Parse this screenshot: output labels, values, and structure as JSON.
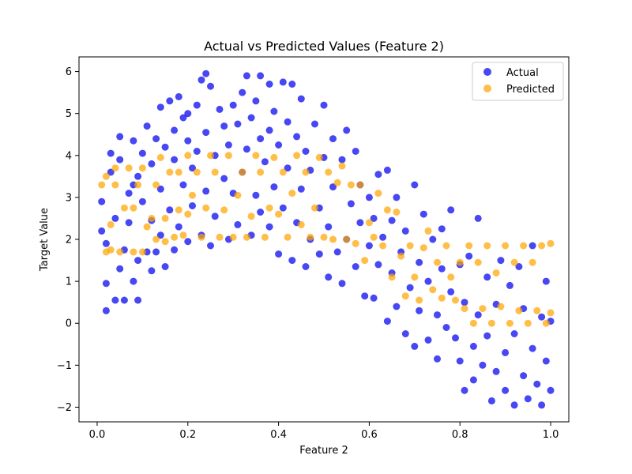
{
  "chart_data": {
    "type": "scatter",
    "title": "Actual vs Predicted Values (Feature 2)",
    "xlabel": "Feature 2",
    "ylabel": "Target Value",
    "xlim": [
      -0.04,
      1.04
    ],
    "ylim": [
      -2.35,
      6.35
    ],
    "x_ticks": [
      0.0,
      0.2,
      0.4,
      0.6,
      0.8,
      1.0
    ],
    "x_tick_labels": [
      "0.0",
      "0.2",
      "0.4",
      "0.6",
      "0.8",
      "1.0"
    ],
    "y_ticks": [
      -2,
      -1,
      0,
      1,
      2,
      3,
      4,
      5,
      6
    ],
    "y_tick_labels": [
      "−2",
      "−1",
      "0",
      "1",
      "2",
      "3",
      "4",
      "5",
      "6"
    ],
    "grid": false,
    "legend_position": "top-right",
    "series": [
      {
        "name": "Actual",
        "color": "#0000ee",
        "points": [
          [
            0.01,
            2.2
          ],
          [
            0.01,
            2.9
          ],
          [
            0.02,
            0.3
          ],
          [
            0.02,
            0.95
          ],
          [
            0.02,
            1.9
          ],
          [
            0.03,
            3.6
          ],
          [
            0.03,
            4.05
          ],
          [
            0.04,
            0.55
          ],
          [
            0.04,
            2.5
          ],
          [
            0.05,
            1.3
          ],
          [
            0.05,
            3.9
          ],
          [
            0.05,
            4.45
          ],
          [
            0.06,
            0.55
          ],
          [
            0.06,
            1.75
          ],
          [
            0.07,
            2.4
          ],
          [
            0.07,
            3.1
          ],
          [
            0.08,
            1.0
          ],
          [
            0.08,
            4.35
          ],
          [
            0.08,
            3.3
          ],
          [
            0.09,
            0.55
          ],
          [
            0.09,
            1.5
          ],
          [
            0.09,
            3.5
          ],
          [
            0.1,
            2.9
          ],
          [
            0.1,
            4.05
          ],
          [
            0.11,
            1.7
          ],
          [
            0.11,
            4.7
          ],
          [
            0.12,
            1.25
          ],
          [
            0.12,
            2.45
          ],
          [
            0.12,
            3.8
          ],
          [
            0.13,
            4.4
          ],
          [
            0.13,
            1.7
          ],
          [
            0.14,
            3.2
          ],
          [
            0.14,
            5.15
          ],
          [
            0.14,
            2.1
          ],
          [
            0.15,
            1.35
          ],
          [
            0.15,
            4.2
          ],
          [
            0.16,
            5.3
          ],
          [
            0.16,
            2.7
          ],
          [
            0.17,
            1.75
          ],
          [
            0.17,
            3.9
          ],
          [
            0.17,
            4.6
          ],
          [
            0.18,
            5.4
          ],
          [
            0.18,
            2.3
          ],
          [
            0.19,
            3.3
          ],
          [
            0.19,
            4.9
          ],
          [
            0.2,
            1.95
          ],
          [
            0.2,
            4.35
          ],
          [
            0.2,
            5.0
          ],
          [
            0.21,
            2.8
          ],
          [
            0.21,
            3.7
          ],
          [
            0.22,
            5.2
          ],
          [
            0.22,
            4.1
          ],
          [
            0.23,
            5.8
          ],
          [
            0.23,
            2.1
          ],
          [
            0.24,
            4.55
          ],
          [
            0.24,
            3.15
          ],
          [
            0.24,
            5.95
          ],
          [
            0.25,
            5.65
          ],
          [
            0.25,
            1.85
          ],
          [
            0.26,
            4.0
          ],
          [
            0.26,
            2.55
          ],
          [
            0.27,
            5.1
          ],
          [
            0.28,
            3.45
          ],
          [
            0.28,
            4.7
          ],
          [
            0.29,
            4.25
          ],
          [
            0.29,
            2.0
          ],
          [
            0.3,
            5.2
          ],
          [
            0.3,
            3.1
          ],
          [
            0.31,
            4.75
          ],
          [
            0.31,
            2.35
          ],
          [
            0.32,
            5.5
          ],
          [
            0.32,
            3.6
          ],
          [
            0.33,
            5.9
          ],
          [
            0.33,
            4.15
          ],
          [
            0.34,
            2.1
          ],
          [
            0.34,
            4.9
          ],
          [
            0.35,
            5.3
          ],
          [
            0.35,
            3.05
          ],
          [
            0.36,
            5.9
          ],
          [
            0.36,
            4.4
          ],
          [
            0.36,
            2.65
          ],
          [
            0.37,
            3.85
          ],
          [
            0.38,
            5.7
          ],
          [
            0.38,
            2.3
          ],
          [
            0.38,
            4.6
          ],
          [
            0.39,
            3.25
          ],
          [
            0.39,
            5.05
          ],
          [
            0.4,
            1.65
          ],
          [
            0.4,
            4.25
          ],
          [
            0.41,
            5.75
          ],
          [
            0.41,
            2.75
          ],
          [
            0.42,
            3.7
          ],
          [
            0.42,
            4.8
          ],
          [
            0.43,
            1.5
          ],
          [
            0.43,
            5.7
          ],
          [
            0.44,
            2.4
          ],
          [
            0.44,
            4.45
          ],
          [
            0.45,
            3.2
          ],
          [
            0.45,
            5.35
          ],
          [
            0.46,
            1.35
          ],
          [
            0.46,
            4.1
          ],
          [
            0.47,
            2.0
          ],
          [
            0.47,
            3.65
          ],
          [
            0.48,
            4.75
          ],
          [
            0.49,
            1.65
          ],
          [
            0.49,
            2.75
          ],
          [
            0.5,
            3.95
          ],
          [
            0.5,
            5.2
          ],
          [
            0.51,
            1.1
          ],
          [
            0.51,
            2.3
          ],
          [
            0.52,
            4.4
          ],
          [
            0.52,
            3.25
          ],
          [
            0.53,
            1.7
          ],
          [
            0.54,
            0.95
          ],
          [
            0.54,
            3.9
          ],
          [
            0.55,
            2.0
          ],
          [
            0.55,
            4.6
          ],
          [
            0.56,
            2.85
          ],
          [
            0.57,
            1.35
          ],
          [
            0.57,
            4.1
          ],
          [
            0.58,
            2.4
          ],
          [
            0.58,
            3.3
          ],
          [
            0.59,
            0.65
          ],
          [
            0.6,
            1.85
          ],
          [
            0.6,
            3.0
          ],
          [
            0.61,
            2.5
          ],
          [
            0.61,
            0.6
          ],
          [
            0.62,
            3.55
          ],
          [
            0.62,
            1.4
          ],
          [
            0.63,
            2.05
          ],
          [
            0.64,
            0.05
          ],
          [
            0.64,
            3.65
          ],
          [
            0.65,
            1.2
          ],
          [
            0.65,
            2.45
          ],
          [
            0.66,
            0.4
          ],
          [
            0.66,
            3.0
          ],
          [
            0.67,
            1.7
          ],
          [
            0.68,
            -0.25
          ],
          [
            0.68,
            2.2
          ],
          [
            0.69,
            0.85
          ],
          [
            0.7,
            3.3
          ],
          [
            0.7,
            -0.55
          ],
          [
            0.71,
            1.45
          ],
          [
            0.71,
            0.3
          ],
          [
            0.72,
            2.6
          ],
          [
            0.73,
            -0.4
          ],
          [
            0.73,
            1.0
          ],
          [
            0.74,
            2.0
          ],
          [
            0.75,
            -0.85
          ],
          [
            0.75,
            0.2
          ],
          [
            0.76,
            2.25
          ],
          [
            0.76,
            1.3
          ],
          [
            0.77,
            -0.1
          ],
          [
            0.78,
            0.75
          ],
          [
            0.78,
            2.7
          ],
          [
            0.79,
            -0.35
          ],
          [
            0.8,
            1.4
          ],
          [
            0.8,
            -0.9
          ],
          [
            0.81,
            0.5
          ],
          [
            0.81,
            -1.6
          ],
          [
            0.82,
            1.6
          ],
          [
            0.83,
            -0.55
          ],
          [
            0.83,
            -1.35
          ],
          [
            0.84,
            0.2
          ],
          [
            0.84,
            2.5
          ],
          [
            0.85,
            -1.0
          ],
          [
            0.86,
            1.1
          ],
          [
            0.86,
            -0.3
          ],
          [
            0.87,
            -1.85
          ],
          [
            0.88,
            0.45
          ],
          [
            0.88,
            -1.15
          ],
          [
            0.89,
            1.5
          ],
          [
            0.9,
            -0.7
          ],
          [
            0.9,
            -1.6
          ],
          [
            0.91,
            0.9
          ],
          [
            0.92,
            -1.95
          ],
          [
            0.92,
            -0.25
          ],
          [
            0.93,
            1.35
          ],
          [
            0.94,
            -1.25
          ],
          [
            0.94,
            0.35
          ],
          [
            0.95,
            -1.8
          ],
          [
            0.96,
            -0.6
          ],
          [
            0.96,
            1.85
          ],
          [
            0.97,
            -1.45
          ],
          [
            0.98,
            0.15
          ],
          [
            0.98,
            -1.95
          ],
          [
            0.99,
            -0.9
          ],
          [
            0.99,
            1.0
          ],
          [
            1.0,
            -1.6
          ],
          [
            1.0,
            0.05
          ]
        ]
      },
      {
        "name": "Predicted",
        "color": "#ffa500",
        "points": [
          [
            0.01,
            3.3
          ],
          [
            0.02,
            3.5
          ],
          [
            0.02,
            1.7
          ],
          [
            0.03,
            2.35
          ],
          [
            0.03,
            1.75
          ],
          [
            0.04,
            3.3
          ],
          [
            0.04,
            3.7
          ],
          [
            0.05,
            1.7
          ],
          [
            0.06,
            2.75
          ],
          [
            0.07,
            3.7
          ],
          [
            0.08,
            2.75
          ],
          [
            0.08,
            1.7
          ],
          [
            0.09,
            3.3
          ],
          [
            0.1,
            3.7
          ],
          [
            0.1,
            1.7
          ],
          [
            0.11,
            2.3
          ],
          [
            0.12,
            2.5
          ],
          [
            0.13,
            2.0
          ],
          [
            0.13,
            3.3
          ],
          [
            0.14,
            3.95
          ],
          [
            0.15,
            1.95
          ],
          [
            0.15,
            2.5
          ],
          [
            0.16,
            3.6
          ],
          [
            0.17,
            2.05
          ],
          [
            0.18,
            2.7
          ],
          [
            0.18,
            3.6
          ],
          [
            0.19,
            2.1
          ],
          [
            0.2,
            4.0
          ],
          [
            0.2,
            2.6
          ],
          [
            0.21,
            3.05
          ],
          [
            0.22,
            3.6
          ],
          [
            0.23,
            2.05
          ],
          [
            0.24,
            2.75
          ],
          [
            0.25,
            4.0
          ],
          [
            0.26,
            3.6
          ],
          [
            0.27,
            2.05
          ],
          [
            0.28,
            2.7
          ],
          [
            0.29,
            4.0
          ],
          [
            0.3,
            2.05
          ],
          [
            0.31,
            3.05
          ],
          [
            0.32,
            3.6
          ],
          [
            0.33,
            2.05
          ],
          [
            0.34,
            2.55
          ],
          [
            0.35,
            4.0
          ],
          [
            0.36,
            3.6
          ],
          [
            0.37,
            2.05
          ],
          [
            0.38,
            2.75
          ],
          [
            0.39,
            3.95
          ],
          [
            0.4,
            2.6
          ],
          [
            0.41,
            3.6
          ],
          [
            0.42,
            2.05
          ],
          [
            0.43,
            3.1
          ],
          [
            0.44,
            4.0
          ],
          [
            0.45,
            2.35
          ],
          [
            0.46,
            3.6
          ],
          [
            0.47,
            2.05
          ],
          [
            0.48,
            2.75
          ],
          [
            0.49,
            3.95
          ],
          [
            0.5,
            2.05
          ],
          [
            0.51,
            3.6
          ],
          [
            0.52,
            2.0
          ],
          [
            0.53,
            3.35
          ],
          [
            0.54,
            3.75
          ],
          [
            0.55,
            2.0
          ],
          [
            0.56,
            3.3
          ],
          [
            0.57,
            1.9
          ],
          [
            0.58,
            3.3
          ],
          [
            0.59,
            1.5
          ],
          [
            0.6,
            2.4
          ],
          [
            0.61,
            2.05
          ],
          [
            0.62,
            3.1
          ],
          [
            0.63,
            1.85
          ],
          [
            0.64,
            2.7
          ],
          [
            0.65,
            1.1
          ],
          [
            0.66,
            2.65
          ],
          [
            0.67,
            1.6
          ],
          [
            0.68,
            0.65
          ],
          [
            0.69,
            1.85
          ],
          [
            0.7,
            1.1
          ],
          [
            0.71,
            0.55
          ],
          [
            0.72,
            1.8
          ],
          [
            0.73,
            2.2
          ],
          [
            0.74,
            0.8
          ],
          [
            0.75,
            1.45
          ],
          [
            0.76,
            0.6
          ],
          [
            0.77,
            1.85
          ],
          [
            0.78,
            1.1
          ],
          [
            0.79,
            0.55
          ],
          [
            0.8,
            1.45
          ],
          [
            0.81,
            0.35
          ],
          [
            0.82,
            1.85
          ],
          [
            0.83,
            0.0
          ],
          [
            0.84,
            1.45
          ],
          [
            0.85,
            0.35
          ],
          [
            0.86,
            1.85
          ],
          [
            0.87,
            0.0
          ],
          [
            0.88,
            1.2
          ],
          [
            0.89,
            0.4
          ],
          [
            0.9,
            1.85
          ],
          [
            0.91,
            0.0
          ],
          [
            0.92,
            1.45
          ],
          [
            0.93,
            0.3
          ],
          [
            0.94,
            1.85
          ],
          [
            0.95,
            0.0
          ],
          [
            0.96,
            1.45
          ],
          [
            0.97,
            0.3
          ],
          [
            0.98,
            1.85
          ],
          [
            0.99,
            0.0
          ],
          [
            1.0,
            1.9
          ],
          [
            1.0,
            0.25
          ]
        ]
      }
    ]
  }
}
